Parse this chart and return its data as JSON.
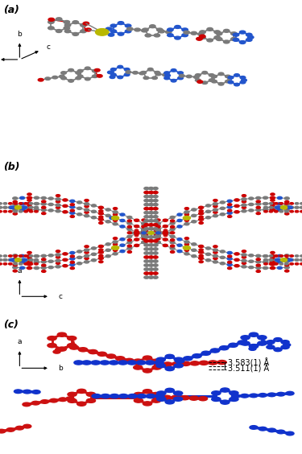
{
  "figsize": [
    3.75,
    5.64
  ],
  "dpi": 100,
  "background": "#ffffff",
  "panel_labels": [
    "(a)",
    "(b)",
    "(c)"
  ],
  "atom_colors": {
    "zinc": "#b8b800",
    "carbon": "#7a7a7a",
    "oxygen": "#cc0000",
    "nitrogen": "#2255cc",
    "blue_fw": "#1133cc",
    "red_fw": "#cc1111"
  },
  "annotation_c": {
    "text1": "3.583(1) Å",
    "text2": "3.511(1) Å",
    "fontsize": 7
  },
  "subfig_label": {
    "fontsize": 9,
    "fontweight": "bold",
    "fontstyle": "italic"
  }
}
